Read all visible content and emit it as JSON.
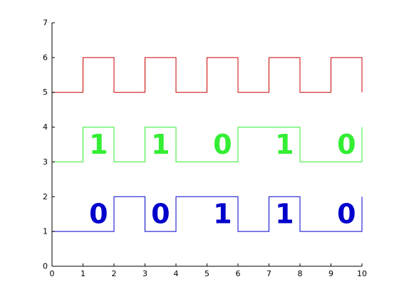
{
  "chart_data": {
    "type": "line",
    "xlim": [
      0,
      10
    ],
    "ylim": [
      0,
      7
    ],
    "grid": false,
    "x_ticks": [
      "0",
      "1",
      "2",
      "3",
      "4",
      "5",
      "6",
      "7",
      "8",
      "9",
      "10"
    ],
    "y_ticks": [
      "0",
      "1",
      "2",
      "3",
      "4",
      "5",
      "6",
      "7"
    ],
    "series": [
      {
        "color": "#cc0000",
        "x": [
          0,
          1,
          1,
          2,
          2,
          3,
          3,
          4,
          4,
          5,
          5,
          6,
          6,
          7,
          7,
          8,
          8,
          9,
          9,
          10,
          10
        ],
        "y": [
          5,
          5,
          6,
          6,
          5,
          5,
          6,
          6,
          5,
          5,
          6,
          6,
          5,
          5,
          6,
          6,
          5,
          5,
          6,
          6,
          5
        ]
      },
      {
        "color": "#33ee33",
        "x": [
          0,
          1,
          1,
          2,
          2,
          3,
          3,
          4,
          4,
          6,
          6,
          8,
          8,
          10,
          10
        ],
        "y": [
          3,
          3,
          4,
          4,
          3,
          3,
          4,
          4,
          3,
          3,
          4,
          4,
          3,
          3,
          4
        ]
      },
      {
        "color": "#0000cc",
        "x": [
          0,
          2,
          2,
          3,
          3,
          4,
          4,
          6,
          6,
          7,
          7,
          8,
          8,
          10,
          10
        ],
        "y": [
          1,
          1,
          2,
          2,
          1,
          1,
          2,
          2,
          1,
          1,
          2,
          2,
          1,
          1,
          2
        ]
      }
    ],
    "annotations": [
      {
        "text": "1",
        "x": 1.5,
        "y": 3.5,
        "color": "#33ee33"
      },
      {
        "text": "1",
        "x": 3.5,
        "y": 3.5,
        "color": "#33ee33"
      },
      {
        "text": "0",
        "x": 5.5,
        "y": 3.5,
        "color": "#33ee33"
      },
      {
        "text": "1",
        "x": 7.5,
        "y": 3.5,
        "color": "#33ee33"
      },
      {
        "text": "0",
        "x": 9.5,
        "y": 3.5,
        "color": "#33ee33"
      },
      {
        "text": "0",
        "x": 1.5,
        "y": 1.5,
        "color": "#0000cc"
      },
      {
        "text": "0",
        "x": 3.5,
        "y": 1.5,
        "color": "#0000cc"
      },
      {
        "text": "1",
        "x": 5.5,
        "y": 1.5,
        "color": "#0000cc"
      },
      {
        "text": "1",
        "x": 7.5,
        "y": 1.5,
        "color": "#0000cc"
      },
      {
        "text": "0",
        "x": 9.5,
        "y": 1.5,
        "color": "#0000cc"
      }
    ]
  }
}
